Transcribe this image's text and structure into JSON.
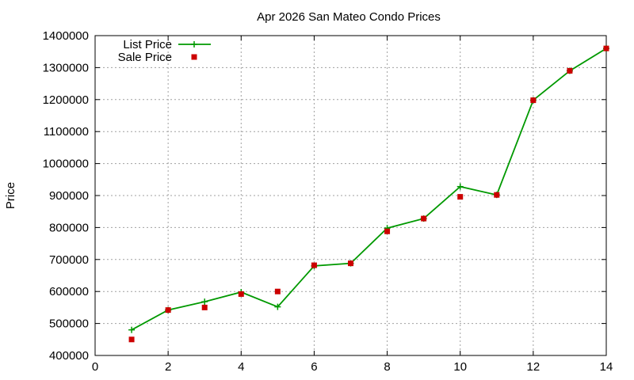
{
  "chart_data": {
    "type": "line",
    "title": "Apr 2026 San Mateo Condo Prices",
    "xlabel": "",
    "ylabel": "Price",
    "xlim": [
      0,
      14
    ],
    "ylim": [
      400000,
      1400000
    ],
    "xticks": [
      0,
      2,
      4,
      6,
      8,
      10,
      12,
      14
    ],
    "yticks": [
      400000,
      500000,
      600000,
      700000,
      800000,
      900000,
      1000000,
      1100000,
      1200000,
      1300000,
      1400000
    ],
    "grid": true,
    "legend_position": "top-left",
    "x": [
      1,
      2,
      3,
      4,
      5,
      6,
      7,
      8,
      9,
      10,
      11,
      12,
      13,
      14
    ],
    "series": [
      {
        "name": "List Price",
        "style": "line-with-plus-points",
        "color": "#009900",
        "values": [
          480000,
          542000,
          568000,
          598000,
          552000,
          680000,
          688000,
          798000,
          828000,
          928000,
          902000,
          1198000,
          1290000,
          1360000
        ]
      },
      {
        "name": "Sale Price",
        "style": "square-points",
        "color": "#cc0000",
        "values": [
          450000,
          542000,
          550000,
          592000,
          600000,
          682000,
          688000,
          788000,
          828000,
          896000,
          902000,
          1198000,
          1290000,
          1360000
        ]
      }
    ]
  }
}
